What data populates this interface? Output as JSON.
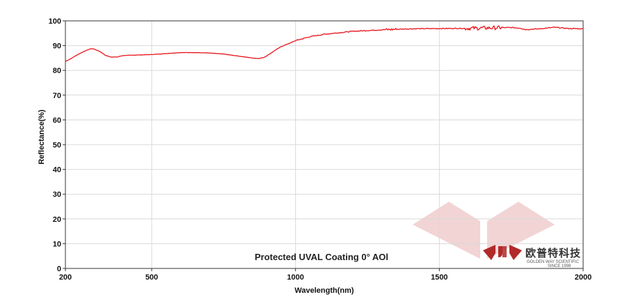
{
  "chart_data": {
    "type": "line",
    "title": "",
    "annotation": "Protected UVAL Coating 0° AOl",
    "xlabel": "Wavelength(nm)",
    "ylabel": "Reflectance(%)",
    "xlim": [
      200,
      2000
    ],
    "ylim": [
      0,
      100
    ],
    "x_ticks": [
      200,
      500,
      1000,
      1500,
      2000
    ],
    "y_ticks": [
      0,
      10,
      20,
      30,
      40,
      50,
      60,
      70,
      80,
      90,
      100
    ],
    "grid": true,
    "legend": "none",
    "series": [
      {
        "color": "#e8141c",
        "x": [
          200,
          220,
          240,
          260,
          280,
          290,
          300,
          320,
          340,
          360,
          380,
          400,
          450,
          500,
          550,
          600,
          650,
          700,
          750,
          800,
          850,
          870,
          890,
          910,
          930,
          950,
          980,
          1000,
          1050,
          1100,
          1150,
          1200,
          1300,
          1400,
          1500,
          1600,
          1700,
          1750,
          1780,
          1800,
          1850,
          1900,
          1950,
          2000
        ],
        "y": [
          83.6,
          84.8,
          86.2,
          87.4,
          88.4,
          88.8,
          88.6,
          87.6,
          86.0,
          85.4,
          85.4,
          86.0,
          86.2,
          86.4,
          86.8,
          87.2,
          87.2,
          87.0,
          86.6,
          85.8,
          85.0,
          84.8,
          85.2,
          86.6,
          88.2,
          89.6,
          91.0,
          92.0,
          93.6,
          94.6,
          95.2,
          95.8,
          96.4,
          96.8,
          96.9,
          97.0,
          97.2,
          97.3,
          97.1,
          96.5,
          96.8,
          97.4,
          96.9,
          96.8
        ]
      }
    ]
  },
  "logo": {
    "cn_text": "欧普特科技",
    "en_line1": "GOLDEN WAY SCIENTIFIC",
    "en_line2": "SINCE 1998",
    "brand_color": "#b22a2a",
    "watermark_color": "#f2d4d4"
  }
}
